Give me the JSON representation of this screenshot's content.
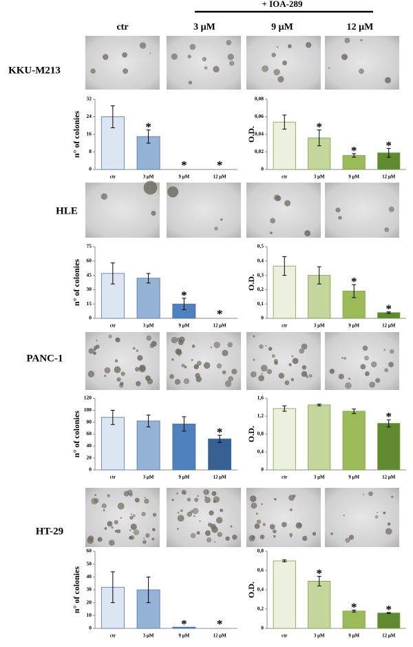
{
  "header": {
    "treatment": "+ IOA-289",
    "columns": [
      "ctr",
      "3 μM",
      "9 μM",
      "12 μM"
    ]
  },
  "cell_lines": [
    "KKU-M213",
    "HLE",
    "PANC-1",
    "HT-29"
  ],
  "chart_data": [
    {
      "type": "bar",
      "ylabel": "n° of colonies",
      "categories": [
        "ctr",
        "3 μM",
        "9 μM",
        "12 μM"
      ],
      "values": [
        24,
        15,
        0,
        0
      ],
      "errors": [
        5,
        3,
        null,
        null
      ],
      "significance": [
        null,
        "*",
        "*",
        "*"
      ],
      "colors": [
        "#dce6f2",
        "#95b3d7",
        "#4f81bd",
        "#366092"
      ],
      "ylim": [
        0,
        32
      ],
      "yticks": [
        0,
        8,
        16,
        24,
        32
      ]
    },
    {
      "type": "bar",
      "ylabel": "O.D.",
      "categories": [
        "ctr",
        "3 μM",
        "9 μM",
        "12 μM"
      ],
      "values": [
        0.054,
        0.036,
        0.016,
        0.019
      ],
      "errors": [
        0.008,
        0.009,
        0.002,
        0.005
      ],
      "significance": [
        null,
        "*",
        "*",
        "*"
      ],
      "colors": [
        "#ebf1de",
        "#c3d69b",
        "#9bbb59",
        "#5f8a2f"
      ],
      "ylim": [
        0,
        0.08
      ],
      "yticks": [
        0,
        {
          "value": 0.02,
          "label": "0,02"
        },
        {
          "value": 0.04,
          "label": "0,04"
        },
        {
          "value": 0.06,
          "label": "0,06"
        },
        {
          "value": 0.08,
          "label": "0,08"
        }
      ]
    },
    {
      "type": "bar",
      "ylabel": "n° of colonies",
      "categories": [
        "ctr",
        "3 μM",
        "9 μM",
        "12 μM"
      ],
      "values": [
        47,
        42,
        15,
        0
      ],
      "errors": [
        11,
        5,
        6,
        null
      ],
      "significance": [
        null,
        null,
        "*",
        "*"
      ],
      "colors": [
        "#dce6f2",
        "#95b3d7",
        "#4f81bd",
        "#366092"
      ],
      "ylim": [
        0,
        75
      ],
      "yticks": [
        0,
        15,
        30,
        45,
        60,
        75
      ]
    },
    {
      "type": "bar",
      "ylabel": "O.D.",
      "categories": [
        "ctr",
        "3 μM",
        "9 μM",
        "12 μM"
      ],
      "values": [
        0.365,
        0.3,
        0.19,
        0.04
      ],
      "errors": [
        0.065,
        0.06,
        0.045,
        0.005
      ],
      "significance": [
        null,
        null,
        "*",
        "*"
      ],
      "colors": [
        "#ebf1de",
        "#c3d69b",
        "#9bbb59",
        "#5f8a2f"
      ],
      "ylim": [
        0,
        0.5
      ],
      "yticks": [
        0,
        {
          "value": 0.1,
          "label": "0,1"
        },
        {
          "value": 0.2,
          "label": "0,2"
        },
        {
          "value": 0.3,
          "label": "0,3"
        },
        {
          "value": 0.4,
          "label": "0,4"
        },
        {
          "value": 0.5,
          "label": "0,5"
        }
      ]
    },
    {
      "type": "bar",
      "ylabel": "n° of colonies",
      "categories": [
        "ctr",
        "3 μM",
        "9 μM",
        "12 μM"
      ],
      "values": [
        88,
        82,
        77,
        52
      ],
      "errors": [
        12,
        10,
        12,
        6
      ],
      "significance": [
        null,
        null,
        null,
        "*"
      ],
      "colors": [
        "#dce6f2",
        "#95b3d7",
        "#4f81bd",
        "#366092"
      ],
      "ylim": [
        0,
        120
      ],
      "yticks": [
        0,
        20,
        40,
        60,
        80,
        100,
        120
      ]
    },
    {
      "type": "bar",
      "ylabel": "O.D.",
      "categories": [
        "ctr",
        "3 μM",
        "9 μM",
        "12 μM"
      ],
      "values": [
        1.37,
        1.45,
        1.31,
        1.04
      ],
      "errors": [
        0.06,
        0.02,
        0.05,
        0.08
      ],
      "significance": [
        null,
        null,
        null,
        "*"
      ],
      "colors": [
        "#ebf1de",
        "#c3d69b",
        "#9bbb59",
        "#5f8a2f"
      ],
      "ylim": [
        0,
        1.6
      ],
      "yticks": [
        0,
        {
          "value": 0.4,
          "label": "0,4"
        },
        {
          "value": 0.8,
          "label": "0,8"
        },
        {
          "value": 1.2,
          "label": "1,2"
        },
        {
          "value": 1.6,
          "label": "1,6"
        }
      ]
    },
    {
      "type": "bar",
      "ylabel": "n° of colonies",
      "categories": [
        "ctr",
        "3 μM",
        "9 μM",
        "12 μM"
      ],
      "values": [
        32,
        30,
        1,
        0
      ],
      "errors": [
        12,
        10,
        null,
        null
      ],
      "significance": [
        null,
        null,
        "*",
        "*"
      ],
      "colors": [
        "#dce6f2",
        "#95b3d7",
        "#4f81bd",
        "#366092"
      ],
      "ylim": [
        0,
        60
      ],
      "yticks": [
        0,
        10,
        20,
        30,
        40,
        50,
        60
      ]
    },
    {
      "type": "bar",
      "ylabel": "O.D.",
      "categories": [
        "ctr",
        "3 μM",
        "9 μM",
        "12 μM"
      ],
      "values": [
        0.7,
        0.49,
        0.18,
        0.16
      ],
      "errors": [
        0.01,
        0.05,
        0.01,
        0.005
      ],
      "significance": [
        null,
        "*",
        "*",
        "*"
      ],
      "colors": [
        "#ebf1de",
        "#c3d69b",
        "#9bbb59",
        "#5f8a2f"
      ],
      "ylim": [
        0,
        0.8
      ],
      "yticks": [
        0,
        {
          "value": 0.2,
          "label": "0,2"
        },
        {
          "value": 0.4,
          "label": "0,4"
        },
        {
          "value": 0.6,
          "label": "0,6"
        },
        {
          "value": 0.8,
          "label": "0,8"
        }
      ]
    }
  ]
}
